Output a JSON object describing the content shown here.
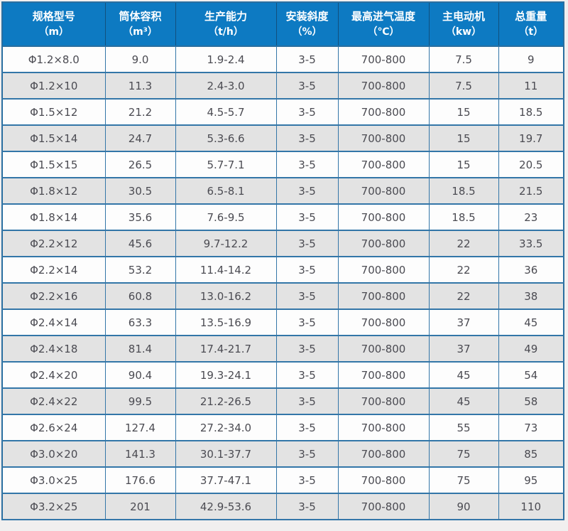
{
  "chart_data": {
    "type": "table",
    "columns": [
      {
        "title": "规格型号",
        "unit": "（m）"
      },
      {
        "title": "筒体容积",
        "unit": "（m³）"
      },
      {
        "title": "生产能力",
        "unit": "（t/h）"
      },
      {
        "title": "安装斜度",
        "unit": "（%）"
      },
      {
        "title": "最高进气温度",
        "unit": "（℃）"
      },
      {
        "title": "主电动机",
        "unit": "（kw）"
      },
      {
        "title": "总重量",
        "unit": "（t）"
      }
    ],
    "rows": [
      [
        "Φ1.2×8.0",
        "9.0",
        "1.9-2.4",
        "3-5",
        "700-800",
        "7.5",
        "9"
      ],
      [
        "Φ1.2×10",
        "11.3",
        "2.4-3.0",
        "3-5",
        "700-800",
        "7.5",
        "11"
      ],
      [
        "Φ1.5×12",
        "21.2",
        "4.5-5.7",
        "3-5",
        "700-800",
        "15",
        "18.5"
      ],
      [
        "Φ1.5×14",
        "24.7",
        "5.3-6.6",
        "3-5",
        "700-800",
        "15",
        "19.7"
      ],
      [
        "Φ1.5×15",
        "26.5",
        "5.7-7.1",
        "3-5",
        "700-800",
        "15",
        "20.5"
      ],
      [
        "Φ1.8×12",
        "30.5",
        "6.5-8.1",
        "3-5",
        "700-800",
        "18.5",
        "21.5"
      ],
      [
        "Φ1.8×14",
        "35.6",
        "7.6-9.5",
        "3-5",
        "700-800",
        "18.5",
        "23"
      ],
      [
        "Φ2.2×12",
        "45.6",
        "9.7-12.2",
        "3-5",
        "700-800",
        "22",
        "33.5"
      ],
      [
        "Φ2.2×14",
        "53.2",
        "11.4-14.2",
        "3-5",
        "700-800",
        "22",
        "36"
      ],
      [
        "Φ2.2×16",
        "60.8",
        "13.0-16.2",
        "3-5",
        "700-800",
        "22",
        "38"
      ],
      [
        "Φ2.4×14",
        "63.3",
        "13.5-16.9",
        "3-5",
        "700-800",
        "37",
        "45"
      ],
      [
        "Φ2.4×18",
        "81.4",
        "17.4-21.7",
        "3-5",
        "700-800",
        "37",
        "49"
      ],
      [
        "Φ2.4×20",
        "90.4",
        "19.3-24.1",
        "3-5",
        "700-800",
        "45",
        "54"
      ],
      [
        "Φ2.4×22",
        "99.5",
        "21.2-26.5",
        "3-5",
        "700-800",
        "45",
        "58"
      ],
      [
        "Φ2.6×24",
        "127.4",
        "27.2-34.0",
        "3-5",
        "700-800",
        "55",
        "73"
      ],
      [
        "Φ3.0×20",
        "141.3",
        "30.1-37.7",
        "3-5",
        "700-800",
        "75",
        "85"
      ],
      [
        "Φ3.0×25",
        "176.6",
        "37.7-47.1",
        "3-5",
        "700-800",
        "75",
        "95"
      ],
      [
        "Φ3.2×25",
        "201",
        "42.9-53.6",
        "3-5",
        "700-800",
        "90",
        "110"
      ]
    ],
    "layout": {
      "grid": true,
      "alternating_rows": true,
      "header_position": "top"
    }
  },
  "colors": {
    "header_bg": "#0d7ac2",
    "header_text": "#ffffff",
    "header_divider": "#11507e",
    "grid_line": "#3376a8",
    "outer_border": "#2a6fa0",
    "row_white": "#fdfdfd",
    "row_gray": "#e3e3e3",
    "body_text": "#4b4b52",
    "page_bg": "#f1efef"
  }
}
